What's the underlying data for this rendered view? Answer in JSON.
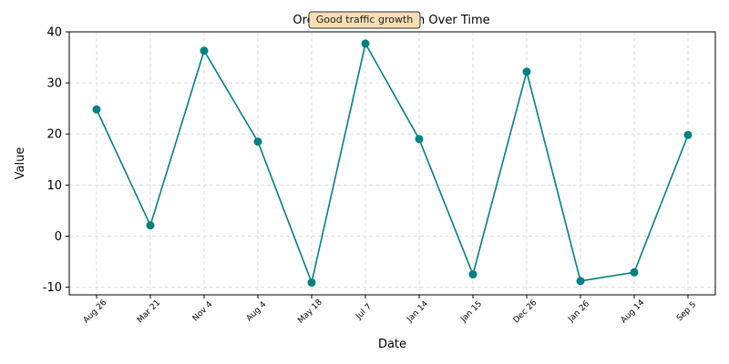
{
  "chart_data": {
    "type": "line",
    "title": "Organic Traffic Growth Over Time",
    "annotation": "Good traffic growth",
    "xlabel": "Date",
    "ylabel": "Value",
    "categories": [
      "Aug 26",
      "Mar 21",
      "Nov 4",
      "Aug 4",
      "May 18",
      "Jul 7",
      "Jan 14",
      "Jan 15",
      "Dec 26",
      "Jan 26",
      "Aug 14",
      "Sep 5"
    ],
    "series": [
      {
        "values": [
          24.8,
          2.1,
          36.3,
          18.5,
          -9.1,
          37.7,
          19.0,
          -7.5,
          32.2,
          -8.8,
          -7.1,
          19.8
        ],
        "color": "#008080"
      }
    ],
    "ylim": [
      -11.5,
      40
    ],
    "yticks": [
      -10,
      0,
      10,
      20,
      30,
      40
    ],
    "grid": true,
    "annotation_style": {
      "fill": "#f5deb3",
      "stroke": "#333333"
    }
  }
}
